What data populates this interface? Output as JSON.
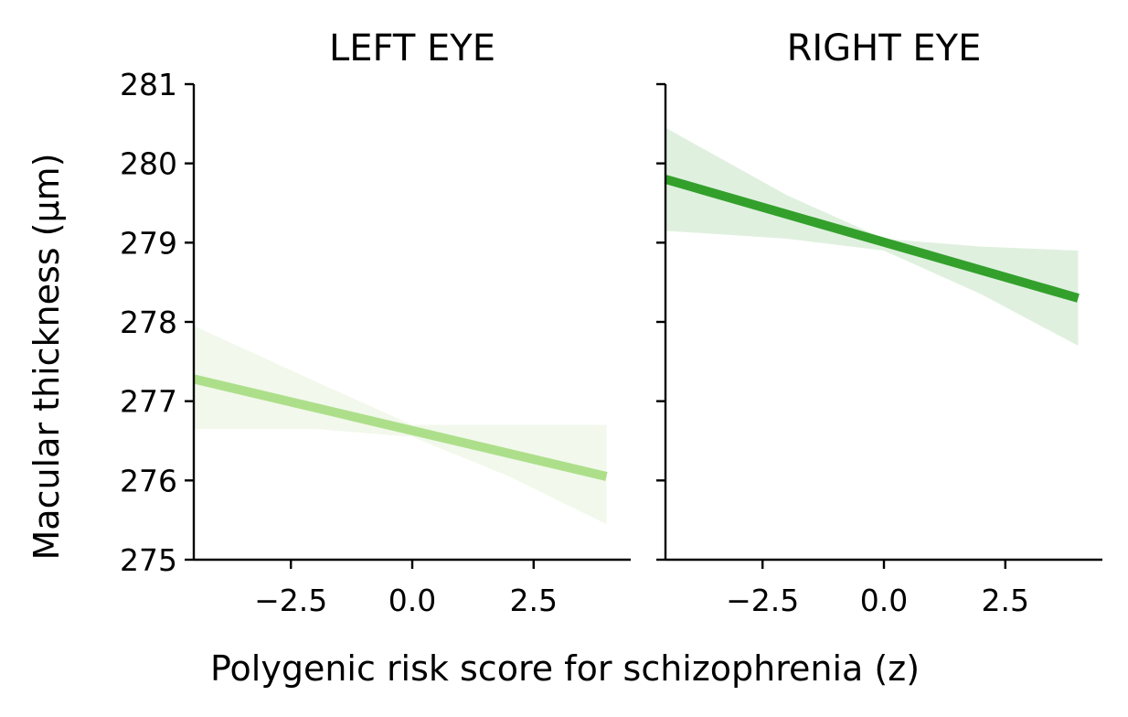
{
  "chart_data": {
    "type": "line",
    "xlabel": "Polygenic risk score for schizophrenia (z)",
    "ylabel": "Macular thickness (μm)",
    "ylim": [
      275,
      281
    ],
    "xlim": [
      -4.5,
      4.5
    ],
    "yticks": [
      275,
      276,
      277,
      278,
      279,
      280,
      281
    ],
    "xticks": [
      -2.5,
      0.0,
      2.5
    ],
    "xtick_labels": [
      "−2.5",
      "0.0",
      "2.5"
    ],
    "grid": false,
    "panels": [
      {
        "title": "LEFT EYE",
        "line_color": "#addf8b",
        "band_color": "#f2f8eb",
        "x": [
          -4.5,
          4.0
        ],
        "y": [
          277.28,
          276.05
        ],
        "ci_upper": [
          {
            "x": -4.5,
            "y": 277.95
          },
          {
            "x": -2.0,
            "y": 277.25
          },
          {
            "x": 0.0,
            "y": 276.7
          },
          {
            "x": 2.0,
            "y": 276.7
          },
          {
            "x": 4.0,
            "y": 276.7
          }
        ],
        "ci_lower": [
          {
            "x": -4.5,
            "y": 276.65
          },
          {
            "x": -2.0,
            "y": 276.65
          },
          {
            "x": 0.0,
            "y": 276.55
          },
          {
            "x": 2.0,
            "y": 276.05
          },
          {
            "x": 4.0,
            "y": 275.45
          }
        ]
      },
      {
        "title": "RIGHT EYE",
        "line_color": "#33a02c",
        "band_color": "#e0f0df",
        "x": [
          -4.5,
          4.0
        ],
        "y": [
          279.8,
          278.3
        ],
        "ci_upper": [
          {
            "x": -4.5,
            "y": 280.45
          },
          {
            "x": -2.0,
            "y": 279.6
          },
          {
            "x": 0.0,
            "y": 279.05
          },
          {
            "x": 2.0,
            "y": 278.95
          },
          {
            "x": 4.0,
            "y": 278.9
          }
        ],
        "ci_lower": [
          {
            "x": -4.5,
            "y": 279.15
          },
          {
            "x": -2.0,
            "y": 279.05
          },
          {
            "x": 0.0,
            "y": 278.9
          },
          {
            "x": 2.0,
            "y": 278.35
          },
          {
            "x": 4.0,
            "y": 277.7
          }
        ]
      }
    ]
  }
}
